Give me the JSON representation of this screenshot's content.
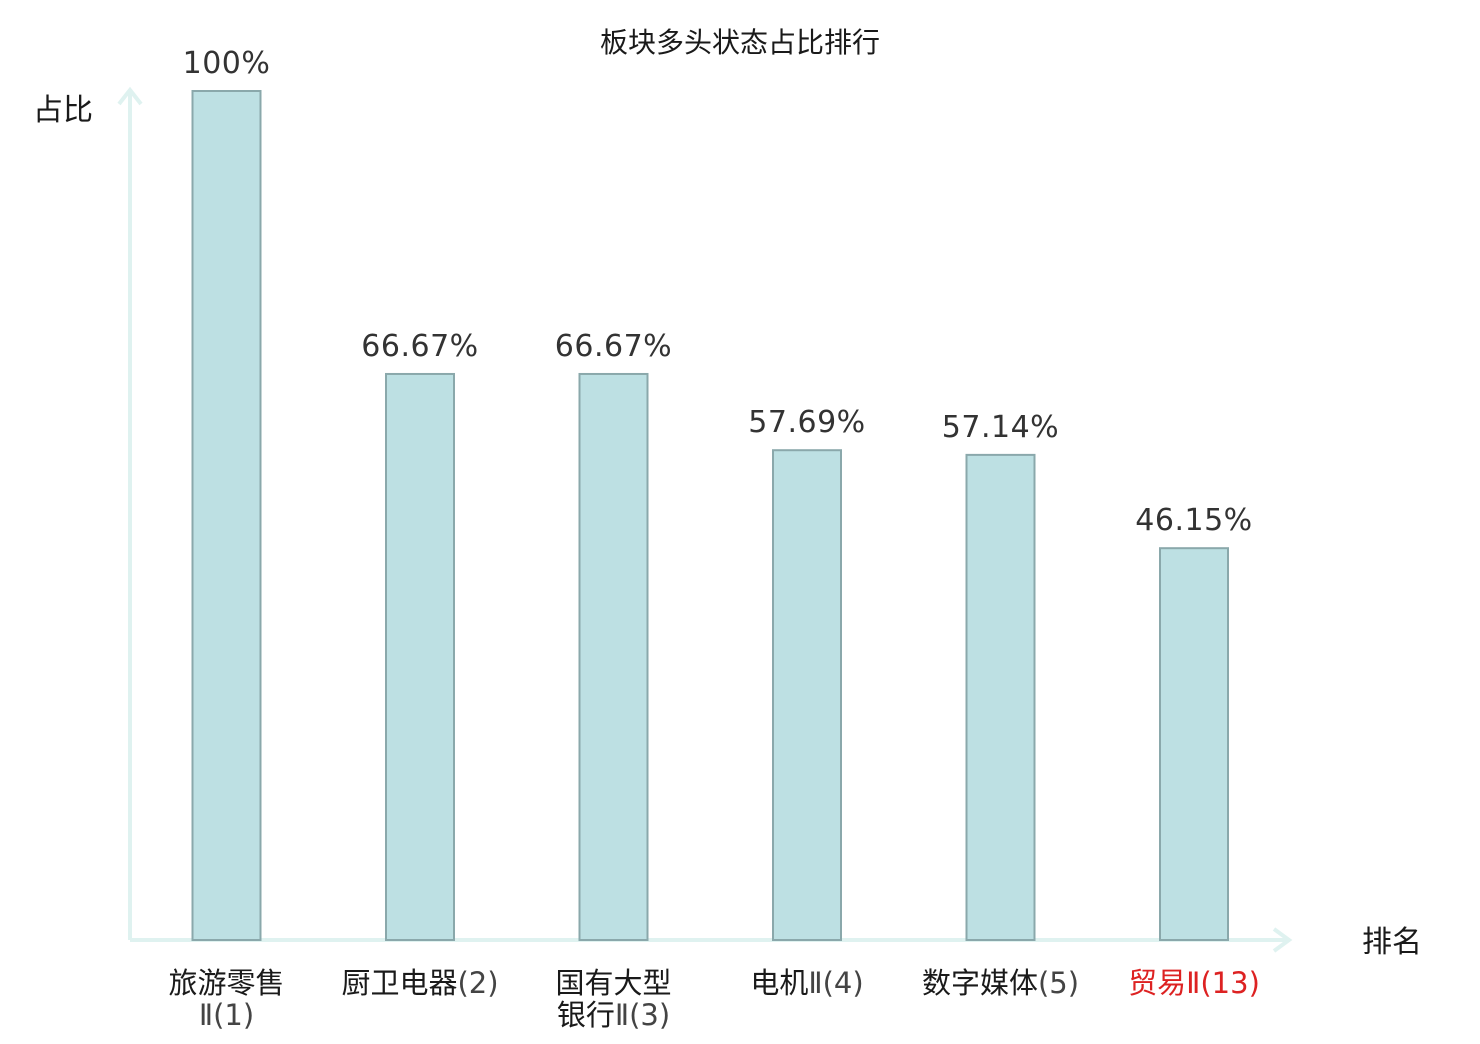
{
  "chart_data": {
    "type": "bar",
    "title": "板块多头状态占比排行",
    "ylabel": "占比",
    "xlabel": "排名",
    "ylim": [
      0,
      100
    ],
    "grid": false,
    "categories": [
      {
        "lines": [
          {
            "name": "旅游零售",
            "rank": ""
          },
          {
            "name": "",
            "rank": "Ⅱ(1)"
          }
        ],
        "highlight": false
      },
      {
        "lines": [
          {
            "name": "厨卫电器",
            "rank": "(2)"
          }
        ],
        "highlight": false
      },
      {
        "lines": [
          {
            "name": "国有大型",
            "rank": ""
          },
          {
            "name": "银行",
            "rank": "Ⅱ(3)"
          }
        ],
        "highlight": false
      },
      {
        "lines": [
          {
            "name": "电机",
            "rank": "Ⅱ(4)"
          }
        ],
        "highlight": false
      },
      {
        "lines": [
          {
            "name": "数字媒体",
            "rank": "(5)"
          }
        ],
        "highlight": false
      },
      {
        "lines": [
          {
            "name": "贸易",
            "rank": "Ⅱ(13)"
          }
        ],
        "highlight": true
      }
    ],
    "values": [
      100,
      66.67,
      66.67,
      57.69,
      57.14,
      46.15
    ],
    "value_labels": [
      "100%",
      "66.67%",
      "66.67%",
      "57.69%",
      "57.14%",
      "46.15%"
    ]
  },
  "colors": {
    "bar_fill": "#bde0e3",
    "bar_stroke": "#8aa8ab",
    "axis": "#dff2f0",
    "highlight_text": "#dd2222",
    "label_text": "#333333"
  }
}
